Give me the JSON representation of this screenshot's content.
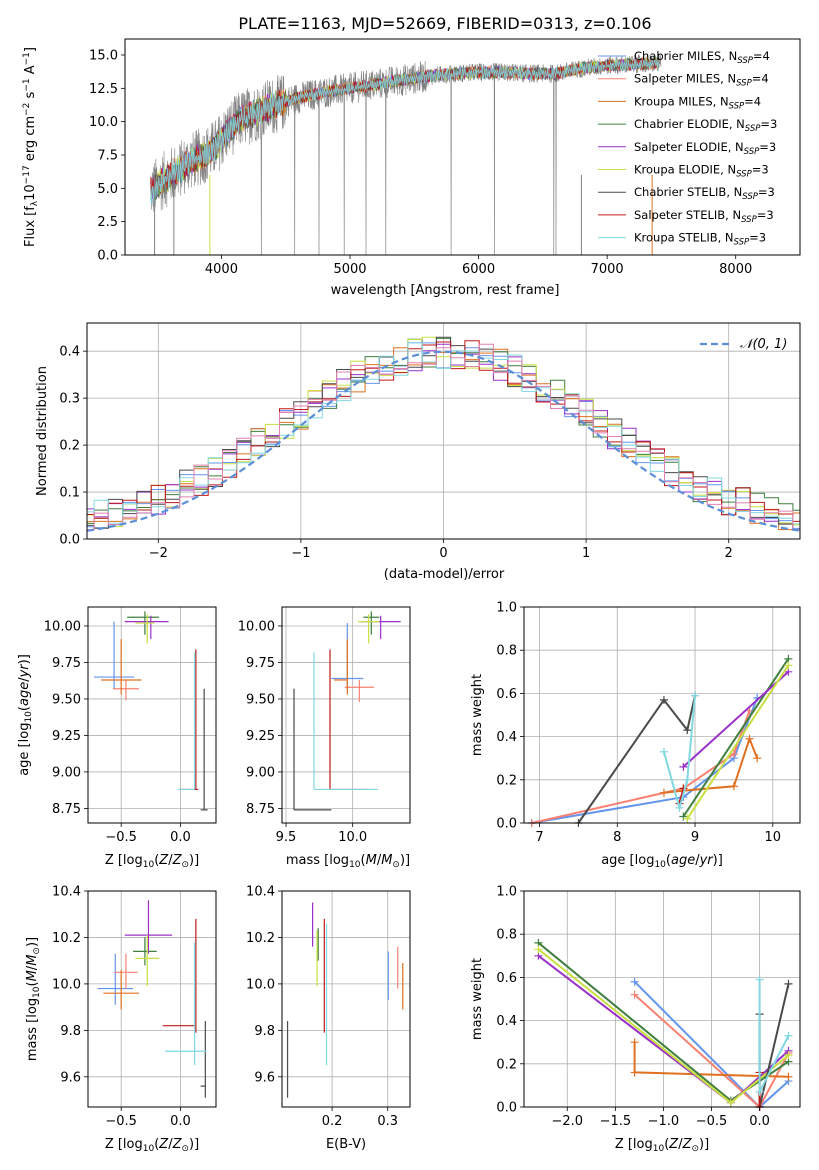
{
  "colors": {
    "spectrum": "#808080",
    "series": [
      "#6495ed",
      "#fa8072",
      "#e07020",
      "#3f7f3f",
      "#9b30c8",
      "#c8e040",
      "#4a4a4a",
      "#c01818",
      "#80d8e0"
    ],
    "hist": [
      "#6495ed",
      "#e07020",
      "#3f7f3f",
      "#9b30c8",
      "#c8e040",
      "#4a4a4a",
      "#c01818",
      "#80d8e0",
      "#e080b0"
    ],
    "gauss": "#5b8fd8",
    "grid": "#b0b0b0"
  },
  "chart_data": [
    {
      "id": "spectrum",
      "type": "line",
      "title": "PLATE=1163, MJD=52669, FIBERID=0313, z=0.106",
      "xlabel": "wavelength [Angstrom, rest frame]",
      "ylabel": "Flux [f_λ 10^-17 erg cm^-2 s^-1 A^-1]",
      "xlim": [
        3250,
        8500
      ],
      "ylim": [
        0,
        16.2
      ],
      "xticks": [
        4000,
        5000,
        6000,
        7000,
        8000
      ],
      "yticks": [
        0.0,
        2.5,
        5.0,
        7.5,
        10.0,
        12.5,
        15.0
      ],
      "grid": false,
      "legend_position": "top-right",
      "legend": [
        "Chabrier MILES, N_SSP=4",
        "Salpeter MILES, N_SSP=4",
        "Kroupa MILES, N_SSP=4",
        "Chabrier ELODIE, N_SSP=3",
        "Salpeter ELODIE, N_SSP=3",
        "Kroupa ELODIE, N_SSP=3",
        "Chabrier STELIB, N_SSP=3",
        "Salpeter STELIB, N_SSP=3",
        "Kroupa STELIB, N_SSP=3"
      ],
      "continuum": [
        [
          3450,
          4.8
        ],
        [
          3550,
          5.6
        ],
        [
          3650,
          6.2
        ],
        [
          3750,
          7.0
        ],
        [
          3850,
          7.4
        ],
        [
          3950,
          8.0
        ],
        [
          4050,
          9.3
        ],
        [
          4150,
          10.2
        ],
        [
          4250,
          10.6
        ],
        [
          4400,
          11.2
        ],
        [
          4600,
          11.8
        ],
        [
          4800,
          12.2
        ],
        [
          5000,
          12.5
        ],
        [
          5200,
          12.8
        ],
        [
          5400,
          13.1
        ],
        [
          5600,
          13.4
        ],
        [
          5800,
          13.6
        ],
        [
          6000,
          13.7
        ],
        [
          6200,
          13.7
        ],
        [
          6400,
          13.6
        ],
        [
          6600,
          13.6
        ],
        [
          6800,
          14.0
        ],
        [
          7000,
          14.2
        ],
        [
          7200,
          14.3
        ],
        [
          7400,
          14.4
        ]
      ],
      "data_range": [
        3450,
        7420
      ],
      "model_range": [
        3450,
        7400
      ]
    },
    {
      "id": "residuals",
      "type": "step",
      "xlabel": "(data-model)/error",
      "ylabel": "Normed distribution",
      "xlim": [
        -2.5,
        2.5
      ],
      "ylim": [
        0,
        0.46
      ],
      "xticks": [
        -2,
        -1,
        0,
        1,
        2
      ],
      "yticks": [
        0.0,
        0.1,
        0.2,
        0.3,
        0.4
      ],
      "grid": true,
      "legend_position": "top-right",
      "legend": [
        "N(0,1)"
      ],
      "bin_width": 0.1
    },
    {
      "id": "age_vs_Z",
      "type": "errorbar",
      "xlabel": "Z [log10(Z/Z⊙)]",
      "ylabel": "age [log10(age/yr)]",
      "xlim": [
        -0.78,
        0.3
      ],
      "ylim": [
        8.65,
        10.13
      ],
      "xticks": [
        -0.5,
        0.0
      ],
      "yticks": [
        8.75,
        9.0,
        9.25,
        9.5,
        9.75,
        10.0
      ],
      "grid": true,
      "points": [
        {
          "x": -0.56,
          "xerr": [
            0.17,
            0.17
          ],
          "y": 9.65,
          "yerr": [
            0.08,
            0.38
          ],
          "color": 0
        },
        {
          "x": -0.46,
          "xerr": [
            0.11,
            0.11
          ],
          "y": 9.57,
          "yerr": [
            0.08,
            0.06
          ],
          "color": 1
        },
        {
          "x": -0.5,
          "xerr": [
            0.17,
            0.17
          ],
          "y": 9.63,
          "yerr": [
            0.1,
            0.28
          ],
          "color": 2
        },
        {
          "x": -0.3,
          "xerr": [
            0.15,
            0.12
          ],
          "y": 10.06,
          "yerr": [
            0.12,
            0.04
          ],
          "color": 3
        },
        {
          "x": -0.25,
          "xerr": [
            0.22,
            0.15
          ],
          "y": 10.03,
          "yerr": [
            0.12,
            0.04
          ],
          "color": 4
        },
        {
          "x": -0.28,
          "xerr": [
            0.1,
            0.06
          ],
          "y": 10.02,
          "yerr": [
            0.14,
            0.06
          ],
          "color": 5
        },
        {
          "x": 0.2,
          "xerr": [
            0.03,
            0.03
          ],
          "y": 8.74,
          "yerr": [
            0.0,
            0.83
          ],
          "color": 6
        },
        {
          "x": 0.13,
          "xerr": [
            0.14,
            0.02
          ],
          "y": 8.88,
          "yerr": [
            0.0,
            0.96
          ],
          "color": 7
        },
        {
          "x": 0.12,
          "xerr": [
            0.14,
            0.0
          ],
          "y": 8.88,
          "yerr": [
            0.0,
            0.94
          ],
          "color": 8
        }
      ]
    },
    {
      "id": "age_vs_mass",
      "type": "errorbar",
      "xlabel": "mass [log10(M/M⊙)]",
      "ylabel": "",
      "xlim": [
        9.47,
        10.43
      ],
      "ylim": [
        8.65,
        10.13
      ],
      "xticks": [
        9.5,
        10.0
      ],
      "yticks": [
        8.75,
        9.0,
        9.25,
        9.5,
        9.75,
        10.0
      ],
      "grid": true,
      "points": [
        {
          "x": 9.96,
          "xerr": [
            0.12,
            0.12
          ],
          "y": 9.64,
          "yerr": [
            0.08,
            0.38
          ],
          "color": 0
        },
        {
          "x": 10.05,
          "xerr": [
            0.11,
            0.11
          ],
          "y": 9.58,
          "yerr": [
            0.1,
            0.05
          ],
          "color": 1
        },
        {
          "x": 9.96,
          "xerr": [
            0.1,
            0.0
          ],
          "y": 9.63,
          "yerr": [
            0.1,
            0.28
          ],
          "color": 2
        },
        {
          "x": 10.14,
          "xerr": [
            0.06,
            0.06
          ],
          "y": 10.06,
          "yerr": [
            0.12,
            0.04
          ],
          "color": 3
        },
        {
          "x": 10.21,
          "xerr": [
            0.15,
            0.15
          ],
          "y": 10.03,
          "yerr": [
            0.12,
            0.04
          ],
          "color": 4
        },
        {
          "x": 10.12,
          "xerr": [
            0.08,
            0.08
          ],
          "y": 10.03,
          "yerr": [
            0.15,
            0.05
          ],
          "color": 5
        },
        {
          "x": 9.56,
          "xerr": [
            0.0,
            0.28
          ],
          "y": 8.74,
          "yerr": [
            0.0,
            0.83
          ],
          "color": 6
        },
        {
          "x": 9.83,
          "xerr": [
            0.0,
            0.28
          ],
          "y": 8.88,
          "yerr": [
            0.0,
            0.96
          ],
          "color": 7
        },
        {
          "x": 9.71,
          "xerr": [
            0.0,
            0.48
          ],
          "y": 8.88,
          "yerr": [
            0.0,
            0.94
          ],
          "color": 8
        }
      ]
    },
    {
      "id": "weight_vs_age",
      "type": "line",
      "xlabel": "age [log10(age/yr)]",
      "ylabel": "mass weight",
      "xlim": [
        6.8,
        10.35
      ],
      "ylim": [
        0.0,
        1.0
      ],
      "xticks": [
        7,
        8,
        9,
        10
      ],
      "yticks": [
        0.0,
        0.2,
        0.4,
        0.6,
        0.8,
        1.0
      ],
      "grid": true,
      "series": [
        {
          "color": 0,
          "x": [
            6.9,
            8.85,
            9.5,
            9.8
          ],
          "y": [
            0.0,
            0.12,
            0.3,
            0.58
          ]
        },
        {
          "color": 1,
          "x": [
            6.9,
            8.85,
            9.5,
            9.7
          ],
          "y": [
            0.0,
            0.16,
            0.32,
            0.52
          ]
        },
        {
          "color": 2,
          "x": [
            8.6,
            8.85,
            9.5,
            9.7,
            9.8
          ],
          "y": [
            0.14,
            0.15,
            0.17,
            0.39,
            0.3
          ]
        },
        {
          "color": 3,
          "x": [
            8.85,
            10.2
          ],
          "y": [
            0.03,
            0.76
          ]
        },
        {
          "color": 4,
          "x": [
            8.85,
            10.2
          ],
          "y": [
            0.26,
            0.7
          ]
        },
        {
          "color": 5,
          "x": [
            8.9,
            10.2
          ],
          "y": [
            0.02,
            0.73
          ]
        },
        {
          "color": 6,
          "x": [
            7.5,
            8.6,
            8.9,
            9.0
          ],
          "y": [
            0.0,
            0.57,
            0.43,
            0.59
          ]
        },
        {
          "color": 7,
          "x": [
            8.8,
            8.85
          ],
          "y": [
            0.09,
            0.16
          ]
        },
        {
          "color": 8,
          "x": [
            8.6,
            8.8,
            8.9,
            9.0
          ],
          "y": [
            0.33,
            0.07,
            0.2,
            0.59
          ]
        }
      ]
    },
    {
      "id": "mass_vs_Z",
      "type": "errorbar",
      "xlabel": "Z [log10(Z/Z⊙)]",
      "ylabel": "mass [log10(M/M⊙)]",
      "xlim": [
        -0.78,
        0.3
      ],
      "ylim": [
        9.47,
        10.4
      ],
      "xticks": [
        -0.5,
        0.0
      ],
      "yticks": [
        9.6,
        9.8,
        10.0,
        10.2,
        10.4
      ],
      "grid": true,
      "points": [
        {
          "x": -0.55,
          "xerr": [
            0.15,
            0.15
          ],
          "y": 9.98,
          "yerr": [
            0.07,
            0.15
          ],
          "color": 0
        },
        {
          "x": -0.46,
          "xerr": [
            0.1,
            0.1
          ],
          "y": 10.05,
          "yerr": [
            0.07,
            0.08
          ],
          "color": 1
        },
        {
          "x": -0.5,
          "xerr": [
            0.15,
            0.15
          ],
          "y": 9.96,
          "yerr": [
            0.07,
            0.1
          ],
          "color": 2
        },
        {
          "x": -0.3,
          "xerr": [
            0.1,
            0.1
          ],
          "y": 10.14,
          "yerr": [
            0.06,
            0.06
          ],
          "color": 3
        },
        {
          "x": -0.27,
          "xerr": [
            0.2,
            0.2
          ],
          "y": 10.21,
          "yerr": [
            0.08,
            0.15
          ],
          "color": 4
        },
        {
          "x": -0.28,
          "xerr": [
            0.1,
            0.1
          ],
          "y": 10.11,
          "yerr": [
            0.12,
            0.1
          ],
          "color": 5
        },
        {
          "x": 0.21,
          "xerr": [
            0.04,
            0.0
          ],
          "y": 9.56,
          "yerr": [
            0.05,
            0.28
          ],
          "color": 6
        },
        {
          "x": 0.13,
          "xerr": [
            0.28,
            0.0
          ],
          "y": 9.82,
          "yerr": [
            0.03,
            0.46
          ],
          "color": 7
        },
        {
          "x": 0.12,
          "xerr": [
            0.25,
            0.1
          ],
          "y": 9.71,
          "yerr": [
            0.06,
            0.47
          ],
          "color": 8
        }
      ]
    },
    {
      "id": "mass_vs_ebv",
      "type": "errorbar",
      "xlabel": "E(B-V)",
      "ylabel": "",
      "xlim": [
        0.11,
        0.34
      ],
      "ylim": [
        9.47,
        10.4
      ],
      "xticks": [
        0.1,
        0.2,
        0.3
      ],
      "yticks": [
        9.6,
        9.8,
        10.0,
        10.2,
        10.4
      ],
      "grid": true,
      "points": [
        {
          "x": 0.301,
          "y": 10.04,
          "yerr": [
            0.11,
            0.1
          ],
          "color": 0
        },
        {
          "x": 0.318,
          "y": 10.05,
          "yerr": [
            0.07,
            0.11
          ],
          "color": 1
        },
        {
          "x": 0.327,
          "y": 9.99,
          "yerr": [
            0.1,
            0.1
          ],
          "color": 2
        },
        {
          "x": 0.175,
          "y": 10.15,
          "yerr": [
            0.05,
            0.09
          ],
          "color": 3
        },
        {
          "x": 0.165,
          "y": 10.22,
          "yerr": [
            0.06,
            0.13
          ],
          "color": 4
        },
        {
          "x": 0.173,
          "y": 10.11,
          "yerr": [
            0.12,
            0.12
          ],
          "color": 5
        },
        {
          "x": 0.12,
          "y": 9.68,
          "yerr": [
            0.17,
            0.16
          ],
          "color": 6
        },
        {
          "x": 0.186,
          "y": 10.04,
          "yerr": [
            0.25,
            0.24
          ],
          "color": 7
        },
        {
          "x": 0.19,
          "y": 9.95,
          "yerr": [
            0.3,
            0.31
          ],
          "color": 8
        }
      ]
    },
    {
      "id": "weight_vs_Z",
      "type": "line",
      "xlabel": "Z [log10(Z/Z⊙)]",
      "ylabel": "mass weight",
      "xlim": [
        -2.45,
        0.42
      ],
      "ylim": [
        0.0,
        1.0
      ],
      "xticks": [
        -2.0,
        -1.5,
        -1.0,
        -0.5,
        0.0
      ],
      "yticks": [
        0.0,
        0.2,
        0.4,
        0.6,
        0.8,
        1.0
      ],
      "grid": true,
      "series": [
        {
          "color": 0,
          "x": [
            -1.3,
            0.0,
            0.3
          ],
          "y": [
            0.58,
            0.0,
            0.12
          ]
        },
        {
          "color": 1,
          "x": [
            -1.3,
            0.0,
            0.3
          ],
          "y": [
            0.52,
            0.0,
            0.25
          ]
        },
        {
          "color": 2,
          "x": [
            -1.3,
            -1.3,
            0.3
          ],
          "y": [
            0.3,
            0.16,
            0.14
          ]
        },
        {
          "color": 3,
          "x": [
            -2.3,
            -0.3,
            0.3
          ],
          "y": [
            0.76,
            0.03,
            0.21
          ]
        },
        {
          "color": 4,
          "x": [
            -2.3,
            -0.3,
            0.3
          ],
          "y": [
            0.7,
            0.02,
            0.26
          ]
        },
        {
          "color": 5,
          "x": [
            -2.3,
            -0.3,
            0.3
          ],
          "y": [
            0.73,
            0.02,
            0.24
          ]
        },
        {
          "color": 6,
          "x": [
            0.0,
            0.0,
            0.3
          ],
          "y": [
            0.43,
            0.0,
            0.57
          ]
        },
        {
          "color": 7,
          "x": [
            0.0,
            0.0
          ],
          "y": [
            0.0,
            0.16
          ]
        },
        {
          "color": 8,
          "x": [
            0.0,
            0.0,
            0.3
          ],
          "y": [
            0.59,
            0.07,
            0.33
          ]
        }
      ]
    }
  ]
}
